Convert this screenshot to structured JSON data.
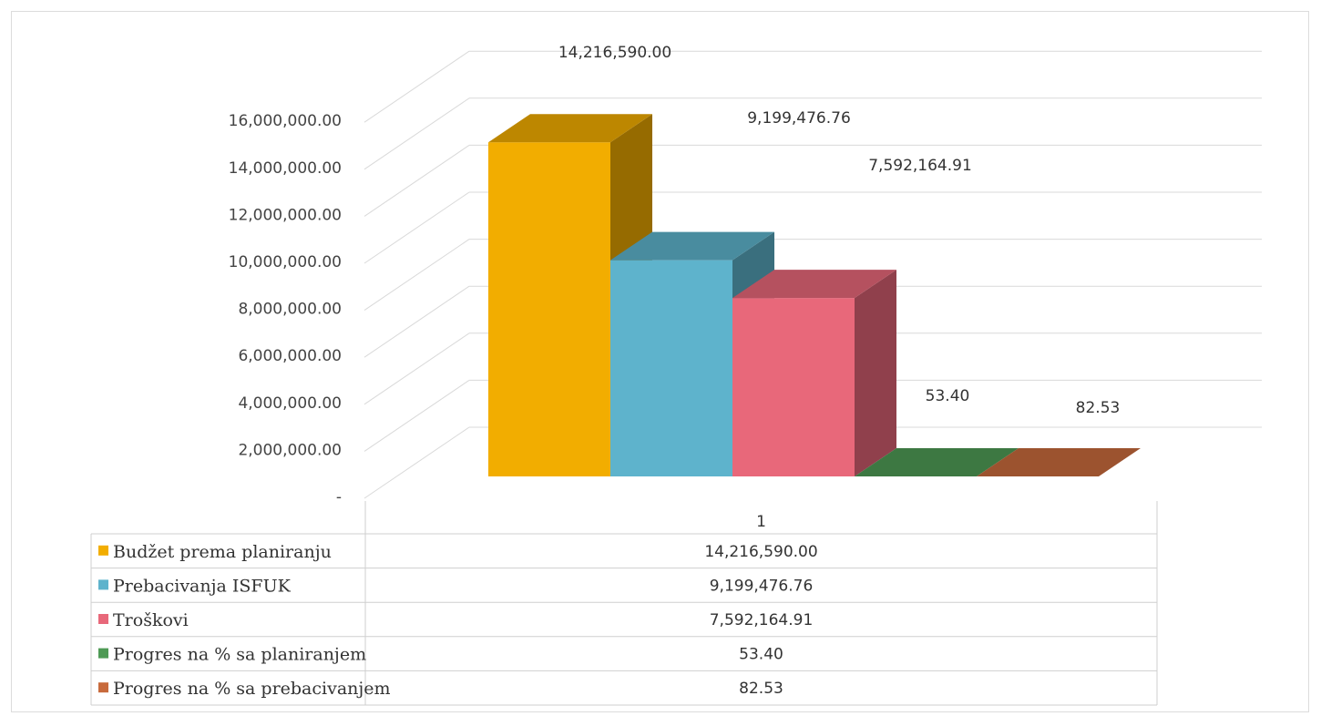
{
  "chart_data": {
    "type": "bar",
    "categories": [
      "1"
    ],
    "series": [
      {
        "name": "Budžet prema planiranju",
        "values": [
          14216590.0
        ],
        "label": "14,216,590.00",
        "color": "#F2AD00"
      },
      {
        "name": "Prebacivanja ISFUK",
        "values": [
          9199476.76
        ],
        "label": "9,199,476.76",
        "color": "#5EB3CC"
      },
      {
        "name": "Troškovi",
        "values": [
          7592164.91
        ],
        "label": "7,592,164.91",
        "color": "#E8687A"
      },
      {
        "name": "Progres na % sa planiranjem",
        "values": [
          53.4
        ],
        "label": "53.40",
        "color": "#4E9A55"
      },
      {
        "name": "Progres na % sa prebacivanjem",
        "values": [
          82.53
        ],
        "label": "82.53",
        "color": "#C86A3C"
      }
    ],
    "yticks": [
      "-",
      "2,000,000.00",
      "4,000,000.00",
      "6,000,000.00",
      "8,000,000.00",
      "10,000,000.00",
      "12,000,000.00",
      "14,000,000.00",
      "16,000,000.00"
    ],
    "ylim": [
      0,
      16000000
    ],
    "grid": true,
    "legend": "data-table-below",
    "title": "",
    "xlabel": "",
    "ylabel": ""
  }
}
